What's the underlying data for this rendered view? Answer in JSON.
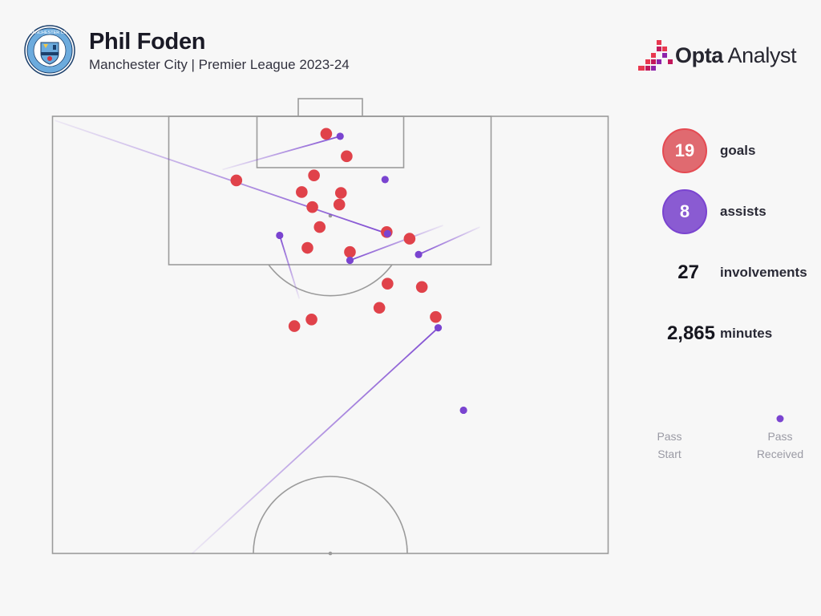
{
  "header": {
    "player_name": "Phil Foden",
    "subtitle": "Manchester City | Premier League 2023-24",
    "crest_icon": "manchester-city-crest-icon",
    "crest_text": "MANCHESTER CITY"
  },
  "brand": {
    "name_strong": "Opta",
    "name_rest": " Analyst",
    "icon": "opta-bar-logo-icon"
  },
  "stats": {
    "goals": {
      "value": "19",
      "label": "goals"
    },
    "assists": {
      "value": "8",
      "label": "assists"
    },
    "involvements": {
      "value": "27",
      "label": "involvements"
    },
    "minutes": {
      "value": "2,865",
      "label": "minutes"
    }
  },
  "legend": {
    "start_label_1": "Pass",
    "start_label_2": "Start",
    "end_label_1": "Pass",
    "end_label_2": "Received"
  },
  "colors": {
    "goal": "#e0424a",
    "assist": "#7a44d0",
    "goal_circle": "#e06a70",
    "assist_circle": "#8a5bd2",
    "pitch_line": "#9b9b9b",
    "background": "#f7f7f7"
  },
  "chart_data": {
    "type": "scatter",
    "pitch_length_m": 52.5,
    "pitch_width_m": 68,
    "coordinate_note": "x = metres across pitch from left touchline (0-68); y = metres from goal line (0-52.5)",
    "goals": [
      {
        "x": 33.5,
        "y": 2.1
      },
      {
        "x": 36.0,
        "y": 4.8
      },
      {
        "x": 22.5,
        "y": 7.7
      },
      {
        "x": 32.0,
        "y": 7.1
      },
      {
        "x": 30.5,
        "y": 9.1
      },
      {
        "x": 35.3,
        "y": 9.2
      },
      {
        "x": 35.1,
        "y": 10.6
      },
      {
        "x": 31.8,
        "y": 10.9
      },
      {
        "x": 32.7,
        "y": 13.3
      },
      {
        "x": 40.9,
        "y": 13.9
      },
      {
        "x": 43.7,
        "y": 14.7
      },
      {
        "x": 31.2,
        "y": 15.8
      },
      {
        "x": 36.4,
        "y": 16.3
      },
      {
        "x": 41.0,
        "y": 20.1
      },
      {
        "x": 45.2,
        "y": 20.5
      },
      {
        "x": 40.0,
        "y": 23.0
      },
      {
        "x": 46.9,
        "y": 24.1
      },
      {
        "x": 31.7,
        "y": 24.4
      },
      {
        "x": 29.6,
        "y": 25.2
      }
    ],
    "assists": [
      {
        "start": {
          "x": 20.8,
          "y": 6.4
        },
        "end": {
          "x": 35.2,
          "y": 2.4
        }
      },
      {
        "start": {
          "x": 0.3,
          "y": 0.5
        },
        "end": {
          "x": 41.0,
          "y": 14.1
        }
      },
      {
        "start": {
          "x": 30.2,
          "y": 21.9
        },
        "end": {
          "x": 27.8,
          "y": 14.3
        }
      },
      {
        "start": {
          "x": 47.8,
          "y": 13.1
        },
        "end": {
          "x": 36.4,
          "y": 17.3
        }
      },
      {
        "start": {
          "x": 52.3,
          "y": 13.3
        },
        "end": {
          "x": 44.8,
          "y": 16.6
        }
      },
      {
        "start": {
          "x": 17.1,
          "y": 52.5
        },
        "end": {
          "x": 47.2,
          "y": 25.4
        }
      },
      {
        "start": {
          "x": 40.7,
          "y": 7.6
        },
        "end": {
          "x": 40.7,
          "y": 7.6
        }
      },
      {
        "start": {
          "x": 50.3,
          "y": 35.3
        },
        "end": {
          "x": 50.3,
          "y": 35.3
        }
      }
    ]
  }
}
